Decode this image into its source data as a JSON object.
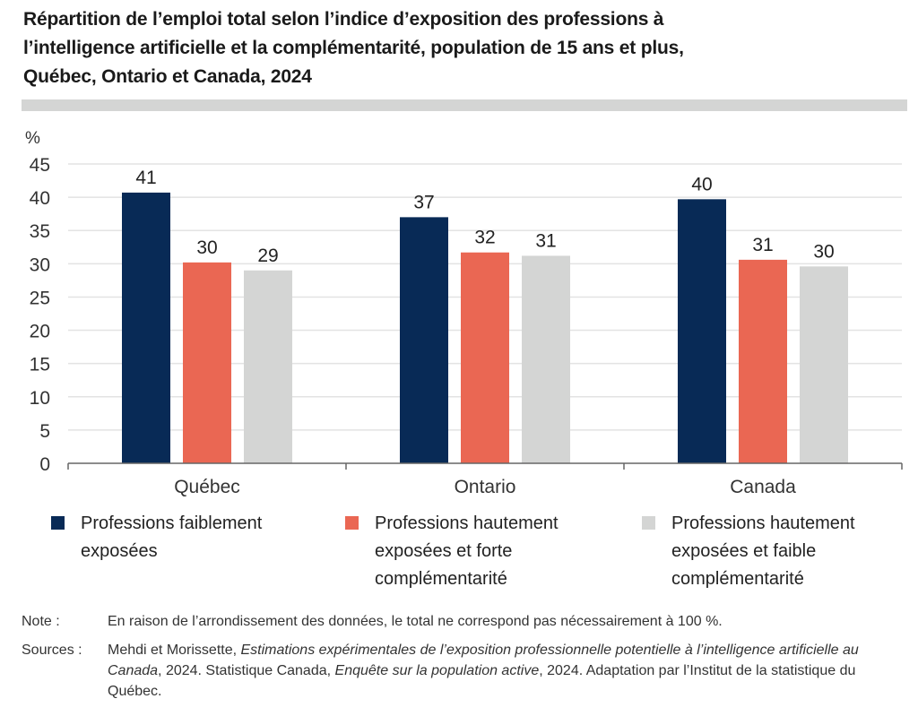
{
  "title": "Répartition de l’emploi total selon l’indice d’exposition des professions à l’intelligence artificielle et la complémentarité, population de 15 ans et plus, Québec, Ontario et Canada, 2024",
  "title_lines": [
    "Répartition de l’emploi total selon l’indice d’exposition des professions à",
    "l’intelligence artificielle et la complémentarité, population de 15 ans et plus,",
    "Québec, Ontario et Canada, 2024"
  ],
  "chart_data": {
    "type": "bar",
    "title": "Répartition de l’emploi total selon l’indice d’exposition des professions à l’intelligence artificielle et la complémentarité, population de 15 ans et plus, Québec, Ontario et Canada, 2024",
    "xlabel": "",
    "ylabel": "%",
    "ylim": [
      0,
      45
    ],
    "yticks": [
      0,
      5,
      10,
      15,
      20,
      25,
      30,
      35,
      40,
      45
    ],
    "grid": true,
    "legend_position": "bottom",
    "categories": [
      "Québec",
      "Ontario",
      "Canada"
    ],
    "series": [
      {
        "name": "Professions faiblement exposées",
        "color": "#082a56",
        "values": [
          40.7,
          37.0,
          39.7
        ],
        "labels": [
          "41",
          "37",
          "40"
        ]
      },
      {
        "name": "Professions hautement exposées et forte complémentarité",
        "color": "#ea6753",
        "values": [
          30.2,
          31.7,
          30.6
        ],
        "labels": [
          "30",
          "32",
          "31"
        ]
      },
      {
        "name": "Professions hautement exposées et faible complémentarité",
        "color": "#d4d5d4",
        "values": [
          29.0,
          31.2,
          29.6
        ],
        "labels": [
          "29",
          "31",
          "30"
        ]
      }
    ]
  },
  "legend": [
    {
      "lines": [
        "Professions faiblement",
        "exposées"
      ],
      "color": "#082a56"
    },
    {
      "lines": [
        "Professions hautement",
        "exposées et forte",
        "complémentarité"
      ],
      "color": "#ea6753"
    },
    {
      "lines": [
        "Professions hautement",
        "exposées et faible",
        "complémentarité"
      ],
      "color": "#d4d5d4"
    }
  ],
  "notes": {
    "note_label": "Note :",
    "note_text": "En raison de l’arrondissement des données, le total ne correspond pas nécessairement à 100 %.",
    "sources_label": "Sources :",
    "sources_part1": "Mehdi et Morissette, ",
    "sources_italic1": "Estimations expérimentales de l’exposition professionnelle potentielle à l’intelligence artificielle au Canada",
    "sources_part2": ", 2024. Statistique Canada, ",
    "sources_italic2": "Enquête sur la population active",
    "sources_part3": ", 2024. Adaptation par l’Institut de la statistique du Québec."
  }
}
